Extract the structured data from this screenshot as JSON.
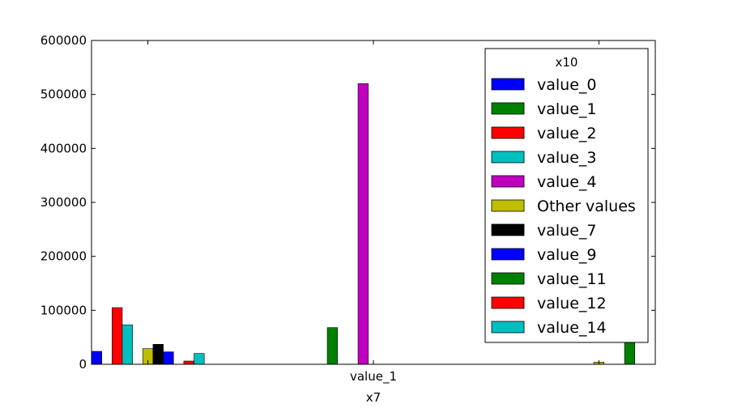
{
  "chart_data": {
    "type": "bar",
    "title": "",
    "xlabel": "x7",
    "ylabel": "",
    "ylim": [
      0,
      600000
    ],
    "yticks": [
      0,
      100000,
      200000,
      300000,
      400000,
      500000,
      600000
    ],
    "ytick_labels": [
      "0",
      "100000",
      "200000",
      "300000",
      "400000",
      "500000",
      "600000"
    ],
    "categories": [
      "",
      "value_1",
      ""
    ],
    "legend": {
      "title": "x10",
      "placement": "top-right"
    },
    "series": [
      {
        "name": "value_0",
        "color": "#0000ff",
        "values": [
          24000,
          0,
          0
        ]
      },
      {
        "name": "value_1",
        "color": "#008000",
        "values": [
          0,
          68000,
          0
        ]
      },
      {
        "name": "value_2",
        "color": "#ff0000",
        "values": [
          105000,
          0,
          0
        ]
      },
      {
        "name": "value_3",
        "color": "#00bfbf",
        "values": [
          73000,
          0,
          0
        ]
      },
      {
        "name": "value_4",
        "color": "#bf00bf",
        "values": [
          0,
          520000,
          0
        ]
      },
      {
        "name": "Other values",
        "color": "#bfbf00",
        "values": [
          29000,
          0,
          4000
        ]
      },
      {
        "name": "value_7",
        "color": "#000000",
        "values": [
          37000,
          0,
          0
        ]
      },
      {
        "name": "value_9",
        "color": "#0000ff",
        "values": [
          23000,
          0,
          0
        ]
      },
      {
        "name": "value_11",
        "color": "#008000",
        "values": [
          0,
          0,
          40000
        ]
      },
      {
        "name": "value_12",
        "color": "#ff0000",
        "values": [
          6000,
          0,
          0
        ]
      },
      {
        "name": "value_14",
        "color": "#00bfbf",
        "values": [
          20000,
          0,
          0
        ]
      }
    ]
  }
}
